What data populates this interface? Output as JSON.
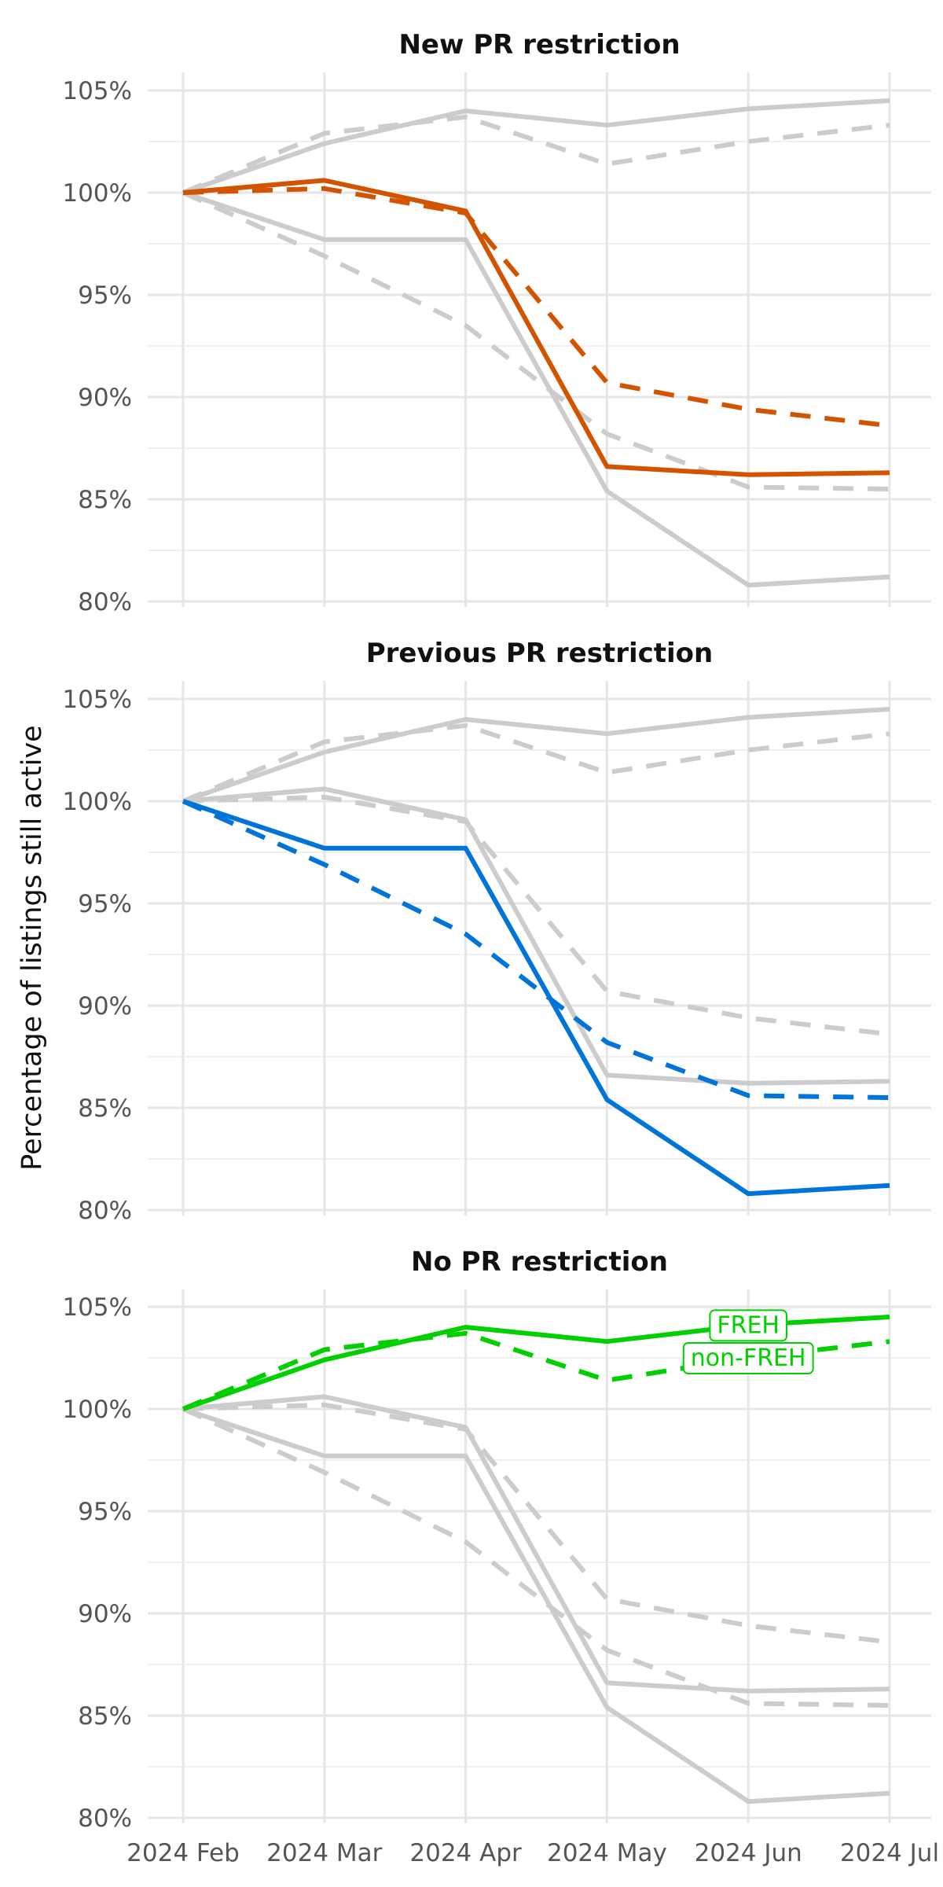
{
  "chart_data": {
    "type": "line",
    "ylabel": "Percentage of listings still active",
    "x": [
      "2024 Feb",
      "2024 Mar",
      "2024 Apr",
      "2024 May",
      "2024 Jun",
      "2024 Jul"
    ],
    "ylim": [
      80,
      105
    ],
    "y_ticks": [
      80,
      85,
      90,
      95,
      100,
      105
    ],
    "y_tick_labels": [
      "80%",
      "85%",
      "90%",
      "95%",
      "100%",
      "105%"
    ],
    "grid": true,
    "background_color": "#cccccc",
    "lines": [
      {
        "id": "new_freh",
        "group": "New PR restriction",
        "category": "FREH",
        "dashed": false,
        "color": "#d35400",
        "values": [
          100,
          100.6,
          99.1,
          86.6,
          86.2,
          86.3
        ]
      },
      {
        "id": "new_nonfreh",
        "group": "New PR restriction",
        "category": "non-FREH",
        "dashed": true,
        "color": "#d35400",
        "values": [
          100,
          100.2,
          99.0,
          90.7,
          89.4,
          88.6
        ]
      },
      {
        "id": "prev_freh",
        "group": "Previous PR restriction",
        "category": "FREH",
        "dashed": false,
        "color": "#0074d9",
        "values": [
          100,
          97.7,
          97.7,
          85.4,
          80.8,
          81.2
        ]
      },
      {
        "id": "prev_nonfreh",
        "group": "Previous PR restriction",
        "category": "non-FREH",
        "dashed": true,
        "color": "#0074d9",
        "values": [
          100,
          96.9,
          93.5,
          88.2,
          85.6,
          85.5
        ]
      },
      {
        "id": "none_freh",
        "group": "No PR restriction",
        "category": "FREH",
        "dashed": false,
        "color": "#00d000",
        "values": [
          100,
          102.4,
          104.0,
          103.3,
          104.1,
          104.5
        ]
      },
      {
        "id": "none_nonfreh",
        "group": "No PR restriction",
        "category": "non-FREH",
        "dashed": true,
        "color": "#00d000",
        "values": [
          100,
          102.9,
          103.7,
          101.4,
          102.5,
          103.3
        ]
      }
    ],
    "panels": [
      {
        "title": "New PR restriction",
        "highlight": [
          "new_freh",
          "new_nonfreh"
        ]
      },
      {
        "title": "Previous PR restriction",
        "highlight": [
          "prev_freh",
          "prev_nonfreh"
        ]
      },
      {
        "title": "No PR restriction",
        "highlight": [
          "none_freh",
          "none_nonfreh"
        ],
        "series_labels": [
          {
            "text": "FREH",
            "x": "2024 Jun",
            "y": 104.1,
            "color": "#00d000"
          },
          {
            "text": "non-FREH",
            "x": "2024 Jun",
            "y": 102.5,
            "color": "#00d000"
          }
        ]
      }
    ]
  }
}
